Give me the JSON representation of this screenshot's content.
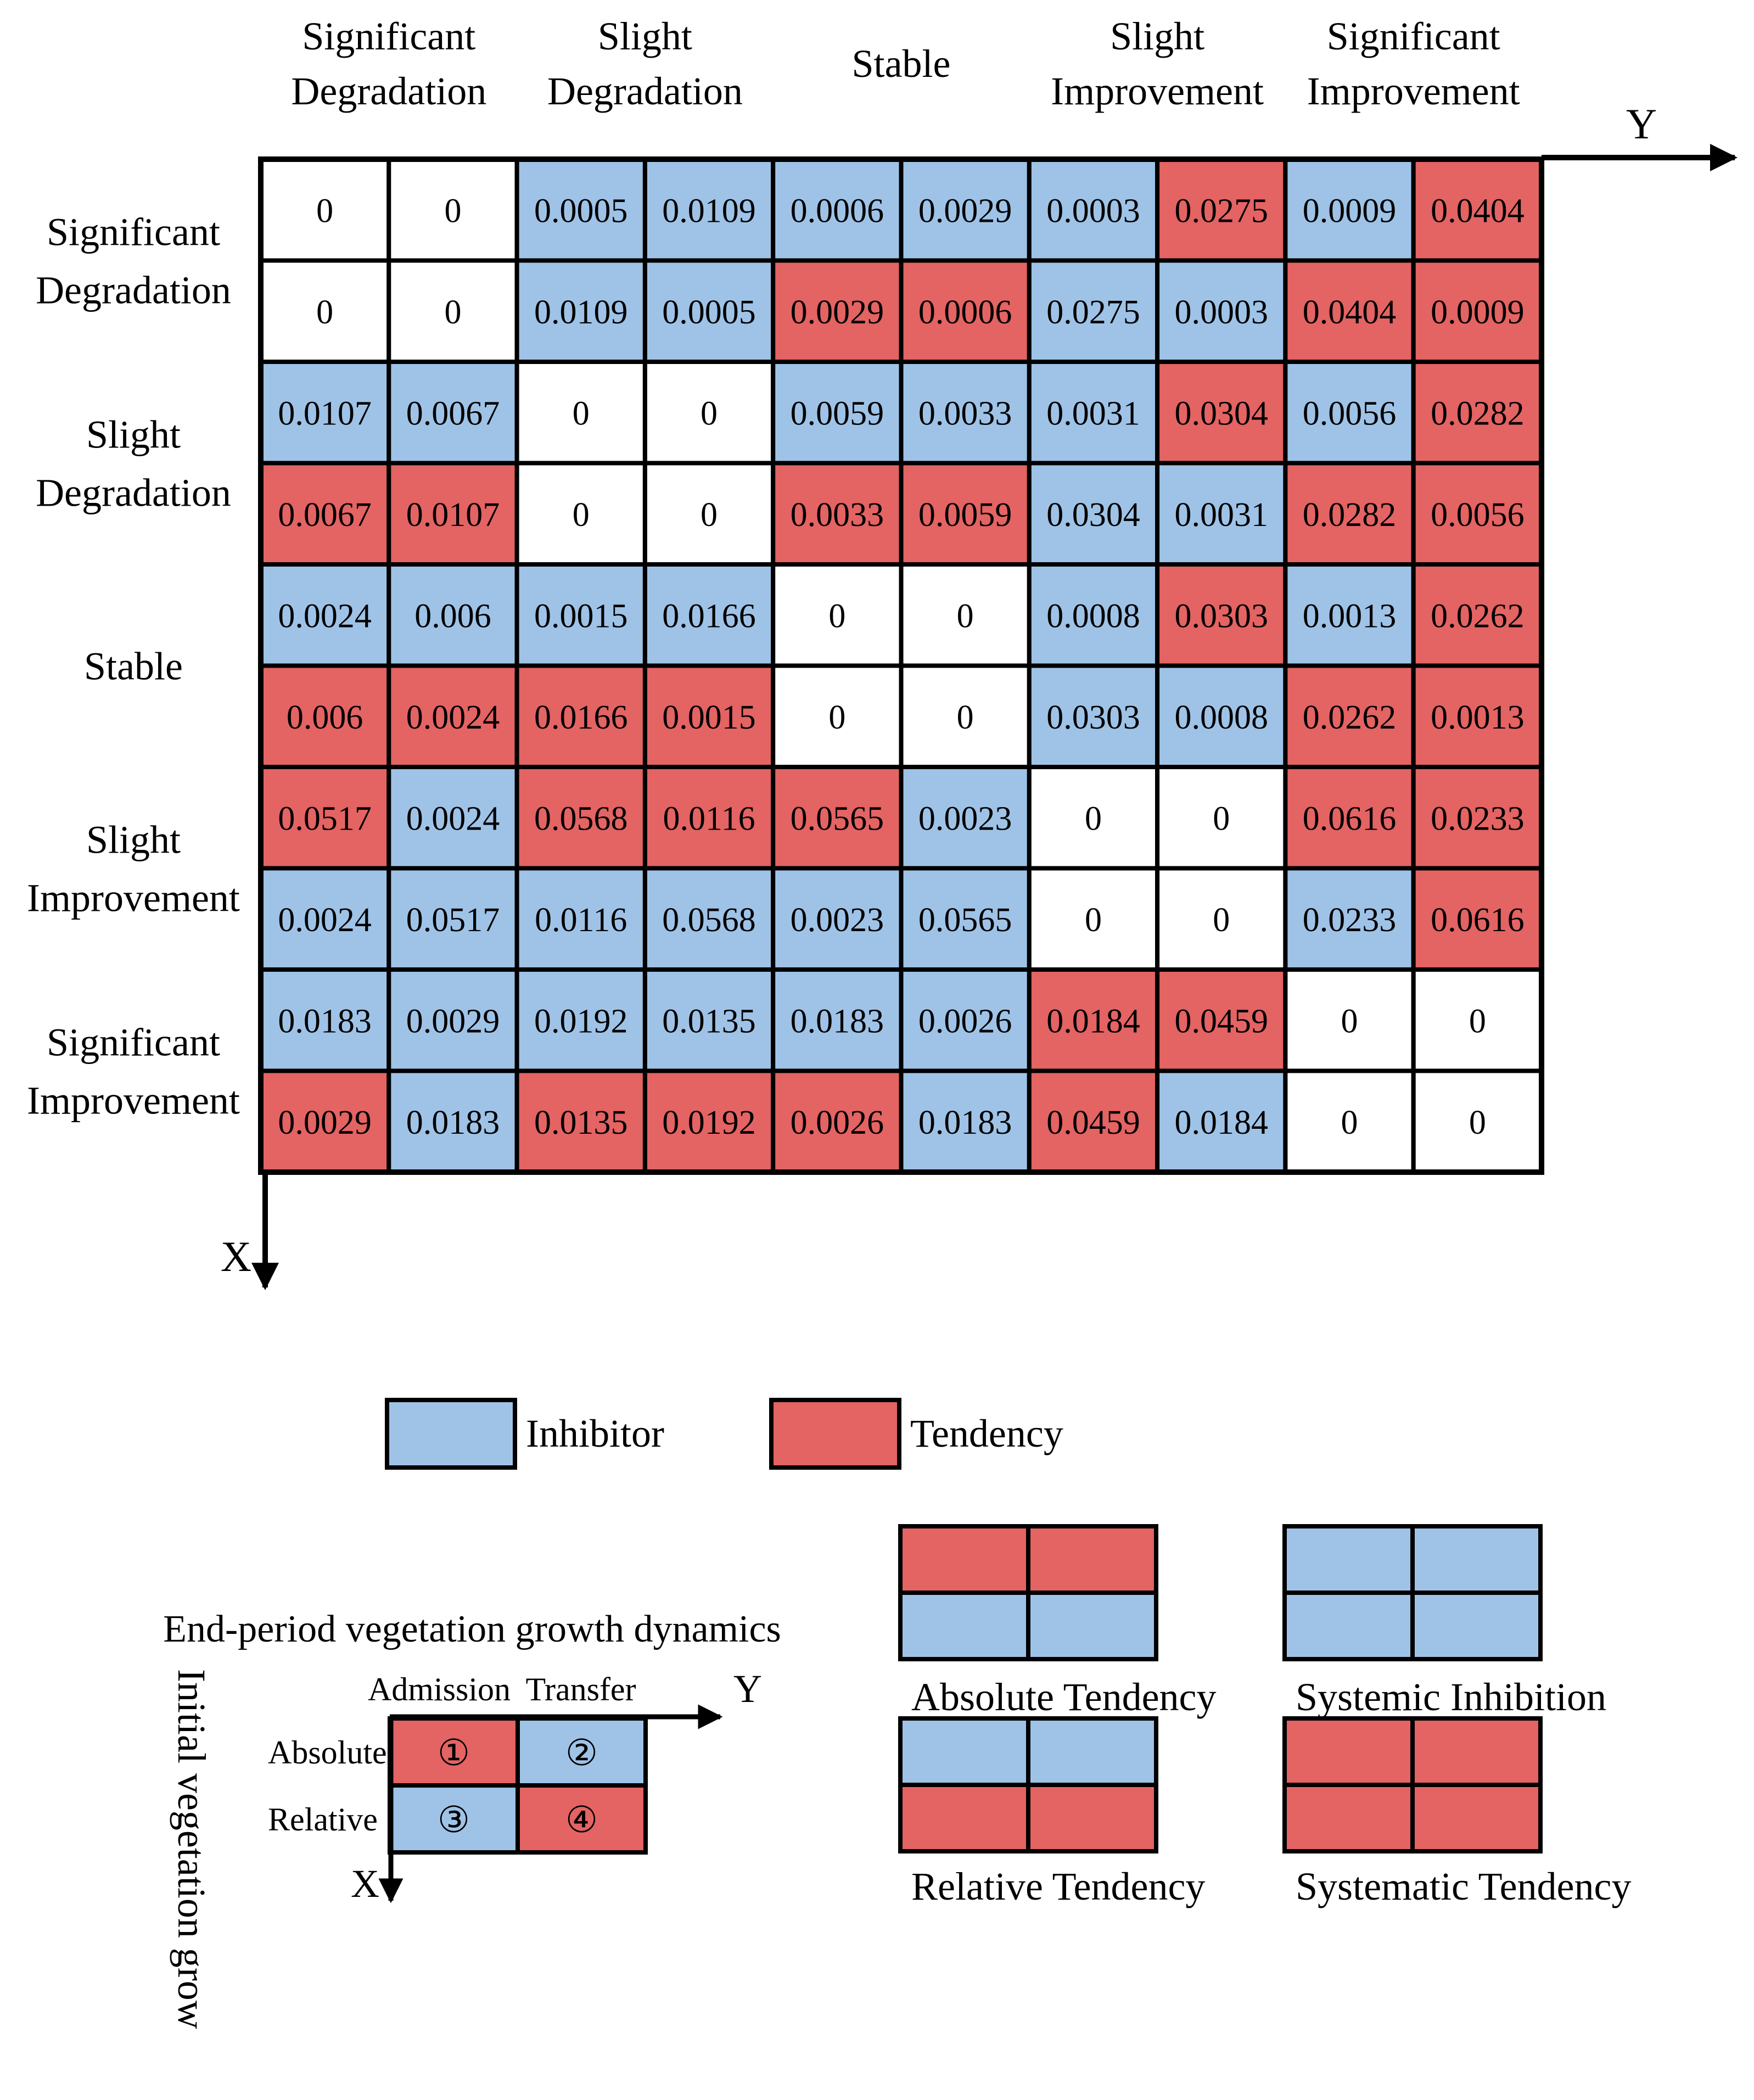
{
  "colors": {
    "inhibitor": "#9fc3e7",
    "tendency": "#e46363",
    "none": "#ffffff",
    "line": "#000000"
  },
  "chart_data": {
    "type": "heatmap",
    "title": "",
    "x_axis_label": "X",
    "y_axis_label": "Y",
    "column_categories": [
      [
        "Significant",
        "Degradation"
      ],
      [
        "Slight",
        "Degradation"
      ],
      [
        "Stable"
      ],
      [
        "Slight",
        "Improvement"
      ],
      [
        "Significant",
        "Improvement"
      ]
    ],
    "row_categories": [
      [
        "Significant",
        "Degradation"
      ],
      [
        "Slight",
        "Degradation"
      ],
      [
        "Stable"
      ],
      [
        "Slight",
        "Improvement"
      ],
      [
        "Significant",
        "Improvement"
      ]
    ],
    "values": [
      [
        "0",
        "0",
        "0.0005",
        "0.0109",
        "0.0006",
        "0.0029",
        "0.0003",
        "0.0275",
        "0.0009",
        "0.0404"
      ],
      [
        "0",
        "0",
        "0.0109",
        "0.0005",
        "0.0029",
        "0.0006",
        "0.0275",
        "0.0003",
        "0.0404",
        "0.0009"
      ],
      [
        "0.0107",
        "0.0067",
        "0",
        "0",
        "0.0059",
        "0.0033",
        "0.0031",
        "0.0304",
        "0.0056",
        "0.0282"
      ],
      [
        "0.0067",
        "0.0107",
        "0",
        "0",
        "0.0033",
        "0.0059",
        "0.0304",
        "0.0031",
        "0.0282",
        "0.0056"
      ],
      [
        "0.0024",
        "0.006",
        "0.0015",
        "0.0166",
        "0",
        "0",
        "0.0008",
        "0.0303",
        "0.0013",
        "0.0262"
      ],
      [
        "0.006",
        "0.0024",
        "0.0166",
        "0.0015",
        "0",
        "0",
        "0.0303",
        "0.0008",
        "0.0262",
        "0.0013"
      ],
      [
        "0.0517",
        "0.0024",
        "0.0568",
        "0.0116",
        "0.0565",
        "0.0023",
        "0",
        "0",
        "0.0616",
        "0.0233"
      ],
      [
        "0.0024",
        "0.0517",
        "0.0116",
        "0.0568",
        "0.0023",
        "0.0565",
        "0",
        "0",
        "0.0233",
        "0.0616"
      ],
      [
        "0.0183",
        "0.0029",
        "0.0192",
        "0.0135",
        "0.0183",
        "0.0026",
        "0.0184",
        "0.0459",
        "0",
        "0"
      ],
      [
        "0.0029",
        "0.0183",
        "0.0135",
        "0.0192",
        "0.0026",
        "0.0183",
        "0.0459",
        "0.0184",
        "0",
        "0"
      ]
    ],
    "cell_types": [
      [
        "N",
        "N",
        "I",
        "I",
        "I",
        "I",
        "I",
        "T",
        "I",
        "T"
      ],
      [
        "N",
        "N",
        "I",
        "I",
        "T",
        "T",
        "I",
        "I",
        "T",
        "T"
      ],
      [
        "I",
        "I",
        "N",
        "N",
        "I",
        "I",
        "I",
        "T",
        "I",
        "T"
      ],
      [
        "T",
        "T",
        "N",
        "N",
        "T",
        "T",
        "I",
        "I",
        "T",
        "T"
      ],
      [
        "I",
        "I",
        "I",
        "I",
        "N",
        "N",
        "I",
        "T",
        "I",
        "T"
      ],
      [
        "T",
        "T",
        "T",
        "T",
        "N",
        "N",
        "I",
        "I",
        "T",
        "T"
      ],
      [
        "T",
        "I",
        "T",
        "T",
        "T",
        "I",
        "N",
        "N",
        "T",
        "T"
      ],
      [
        "I",
        "I",
        "I",
        "I",
        "I",
        "I",
        "N",
        "N",
        "I",
        "T"
      ],
      [
        "I",
        "I",
        "I",
        "I",
        "I",
        "I",
        "T",
        "T",
        "N",
        "N"
      ],
      [
        "T",
        "I",
        "T",
        "T",
        "T",
        "I",
        "T",
        "I",
        "N",
        "N"
      ]
    ],
    "legend": [
      {
        "label": "Inhibitor",
        "type": "I"
      },
      {
        "label": "Tendency",
        "type": "T"
      }
    ]
  },
  "explanation": {
    "title": "End-period vegetation growth dynamics",
    "vertical_label": "Initial vegetation grow",
    "col_headers": [
      "Admission",
      "Transfer"
    ],
    "row_headers": [
      "Absolute",
      "Relative"
    ],
    "cells": [
      {
        "symbol": "①",
        "type": "T"
      },
      {
        "symbol": "②",
        "type": "I"
      },
      {
        "symbol": "③",
        "type": "I"
      },
      {
        "symbol": "④",
        "type": "T"
      }
    ],
    "axis_x": "X",
    "axis_y": "Y"
  },
  "patterns": [
    {
      "label": "Absolute Tendency",
      "cells": [
        "T",
        "T",
        "I",
        "I"
      ]
    },
    {
      "label": "Systemic Inhibition",
      "cells": [
        "I",
        "I",
        "I",
        "I"
      ]
    },
    {
      "label": "Relative Tendency",
      "cells": [
        "I",
        "I",
        "T",
        "T"
      ]
    },
    {
      "label": "Systematic Tendency",
      "cells": [
        "T",
        "T",
        "T",
        "T"
      ]
    }
  ]
}
